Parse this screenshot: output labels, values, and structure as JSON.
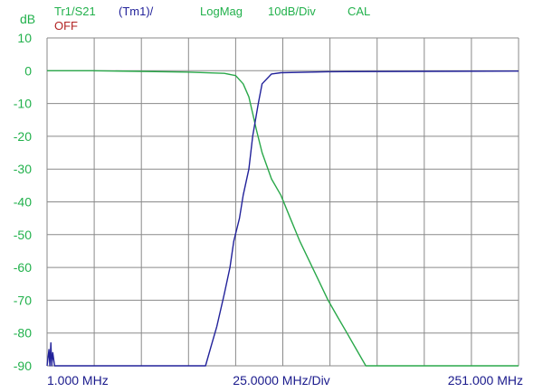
{
  "header": {
    "trace": "Tr1/S21",
    "memory": "(Tm1)/",
    "format": "LogMag",
    "scale": "10dB/Div",
    "cal": "CAL",
    "status": "OFF"
  },
  "colors": {
    "trace_s21": "#2aa84a",
    "trace_memory": "#22229a",
    "status_off": "#b22222",
    "axis_label": "#22b14c",
    "x_label": "#1a1a8c",
    "grid": "#8a8a8a"
  },
  "chart_data": {
    "type": "line",
    "ylabel": "dB",
    "ylim": [
      -90,
      10
    ],
    "xlim": [
      1.0,
      251.0
    ],
    "y_ticks": [
      "10",
      "0",
      "-10",
      "-20",
      "-30",
      "-40",
      "-50",
      "-60",
      "-70",
      "-80",
      "-90"
    ],
    "x_tick_labels": {
      "start": "1.000 MHz",
      "center": "25.0000 MHz/Div",
      "stop": "251.000 MHz"
    },
    "grid": true,
    "series": [
      {
        "name": "Tr1/S21",
        "color": "#2aa84a",
        "x": [
          1,
          25,
          50,
          75,
          95,
          101,
          105,
          108,
          110,
          112,
          115,
          120,
          125,
          130,
          135,
          140,
          145,
          150,
          155,
          160,
          165,
          170,
          251
        ],
        "y": [
          0,
          0,
          -0.2,
          -0.4,
          -0.8,
          -1.5,
          -4,
          -8,
          -13,
          -18,
          -25,
          -33,
          -38,
          -45,
          -52,
          -58,
          -64,
          -70,
          -75,
          -80,
          -85,
          -90,
          -90
        ]
      },
      {
        "name": "(Tm1)/",
        "color": "#22229a",
        "x": [
          1,
          2,
          2.5,
          3,
          3.5,
          4,
          5,
          75,
          85,
          88,
          91,
          95,
          98,
          100,
          103,
          105,
          108,
          110,
          113,
          115,
          120,
          125,
          150,
          200,
          251
        ],
        "y": [
          -90,
          -85,
          -90,
          -83,
          -90,
          -86,
          -90,
          -90,
          -90,
          -84,
          -78,
          -68,
          -60,
          -52,
          -45,
          -38,
          -30,
          -20,
          -10,
          -4,
          -1,
          -0.6,
          -0.3,
          -0.2,
          -0.1
        ]
      }
    ]
  }
}
